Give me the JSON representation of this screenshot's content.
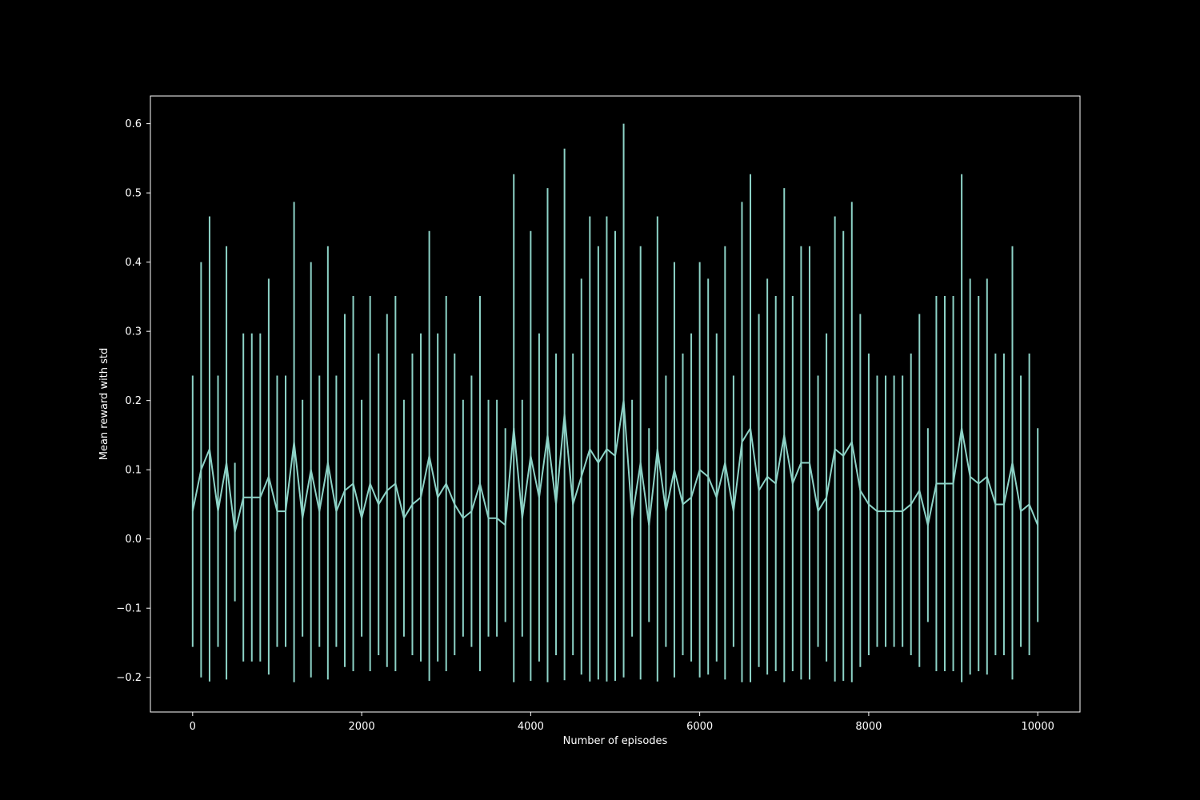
{
  "chart_data": {
    "type": "line",
    "title": "",
    "xlabel": "Number of episodes",
    "ylabel": "Mean reward with std",
    "xlim": [
      -500,
      10500
    ],
    "ylim": [
      -0.25,
      0.64
    ],
    "xticks": [
      0,
      2000,
      4000,
      6000,
      8000,
      10000
    ],
    "xtick_labels": [
      "0",
      "2000",
      "4000",
      "6000",
      "8000",
      "10000"
    ],
    "yticks": [
      -0.2,
      -0.1,
      0.0,
      0.1,
      0.2,
      0.3,
      0.4,
      0.5,
      0.6
    ],
    "ytick_labels": [
      "−0.2",
      "−0.1",
      "0.0",
      "0.1",
      "0.2",
      "0.3",
      "0.4",
      "0.5",
      "0.6"
    ],
    "grid": false,
    "legend": "none",
    "colors": {
      "background": "#000000",
      "axes": "#ffffff",
      "series": "#8dd3c7"
    },
    "series": [
      {
        "x": [
          0,
          100,
          200,
          300,
          400,
          500,
          600,
          700,
          800,
          900,
          1000,
          1100,
          1200,
          1300,
          1400,
          1500,
          1600,
          1700,
          1800,
          1900,
          2000,
          2100,
          2200,
          2300,
          2400,
          2500,
          2600,
          2700,
          2800,
          2900,
          3000,
          3100,
          3200,
          3300,
          3400,
          3500,
          3600,
          3700,
          3800,
          3900,
          4000,
          4100,
          4200,
          4300,
          4400,
          4500,
          4600,
          4700,
          4800,
          4900,
          5000,
          5100,
          5200,
          5300,
          5400,
          5500,
          5600,
          5700,
          5800,
          5900,
          6000,
          6100,
          6200,
          6300,
          6400,
          6500,
          6600,
          6700,
          6800,
          6900,
          7000,
          7100,
          7200,
          7300,
          7400,
          7500,
          7600,
          7700,
          7800,
          7900,
          8000,
          8100,
          8200,
          8300,
          8400,
          8500,
          8600,
          8700,
          8800,
          8900,
          9000,
          9100,
          9200,
          9300,
          9400,
          9500,
          9600,
          9700,
          9800,
          9900,
          10000
        ],
        "y": [
          0.04,
          0.1,
          0.13,
          0.04,
          0.11,
          0.01,
          0.06,
          0.06,
          0.06,
          0.09,
          0.04,
          0.04,
          0.14,
          0.03,
          0.1,
          0.04,
          0.11,
          0.04,
          0.07,
          0.08,
          0.03,
          0.08,
          0.05,
          0.07,
          0.08,
          0.03,
          0.05,
          0.06,
          0.12,
          0.06,
          0.08,
          0.05,
          0.03,
          0.04,
          0.08,
          0.03,
          0.03,
          0.02,
          0.16,
          0.03,
          0.12,
          0.06,
          0.15,
          0.05,
          0.18,
          0.05,
          0.09,
          0.13,
          0.11,
          0.13,
          0.12,
          0.2,
          0.03,
          0.11,
          0.02,
          0.13,
          0.04,
          0.1,
          0.05,
          0.06,
          0.1,
          0.09,
          0.06,
          0.11,
          0.04,
          0.14,
          0.16,
          0.07,
          0.09,
          0.08,
          0.15,
          0.08,
          0.11,
          0.11,
          0.04,
          0.06,
          0.13,
          0.12,
          0.14,
          0.07,
          0.05,
          0.04,
          0.04,
          0.04,
          0.04,
          0.05,
          0.07,
          0.02,
          0.08,
          0.08,
          0.08,
          0.16,
          0.09,
          0.08,
          0.09,
          0.05,
          0.05,
          0.11,
          0.04,
          0.05,
          0.02
        ],
        "err": [
          0.196,
          0.3,
          0.336,
          0.196,
          0.313,
          0.1,
          0.237,
          0.237,
          0.237,
          0.286,
          0.196,
          0.196,
          0.347,
          0.171,
          0.3,
          0.196,
          0.313,
          0.196,
          0.255,
          0.271,
          0.171,
          0.271,
          0.218,
          0.255,
          0.271,
          0.171,
          0.218,
          0.237,
          0.325,
          0.237,
          0.271,
          0.218,
          0.171,
          0.196,
          0.271,
          0.171,
          0.171,
          0.14,
          0.367,
          0.171,
          0.325,
          0.237,
          0.357,
          0.218,
          0.384,
          0.218,
          0.286,
          0.336,
          0.313,
          0.336,
          0.325,
          0.4,
          0.171,
          0.313,
          0.14,
          0.336,
          0.196,
          0.3,
          0.218,
          0.237,
          0.3,
          0.286,
          0.237,
          0.313,
          0.196,
          0.347,
          0.367,
          0.255,
          0.286,
          0.271,
          0.357,
          0.271,
          0.313,
          0.313,
          0.196,
          0.237,
          0.336,
          0.325,
          0.347,
          0.255,
          0.218,
          0.196,
          0.196,
          0.196,
          0.196,
          0.218,
          0.255,
          0.14,
          0.271,
          0.271,
          0.271,
          0.367,
          0.286,
          0.271,
          0.286,
          0.218,
          0.218,
          0.313,
          0.196,
          0.218,
          0.14
        ]
      }
    ]
  }
}
